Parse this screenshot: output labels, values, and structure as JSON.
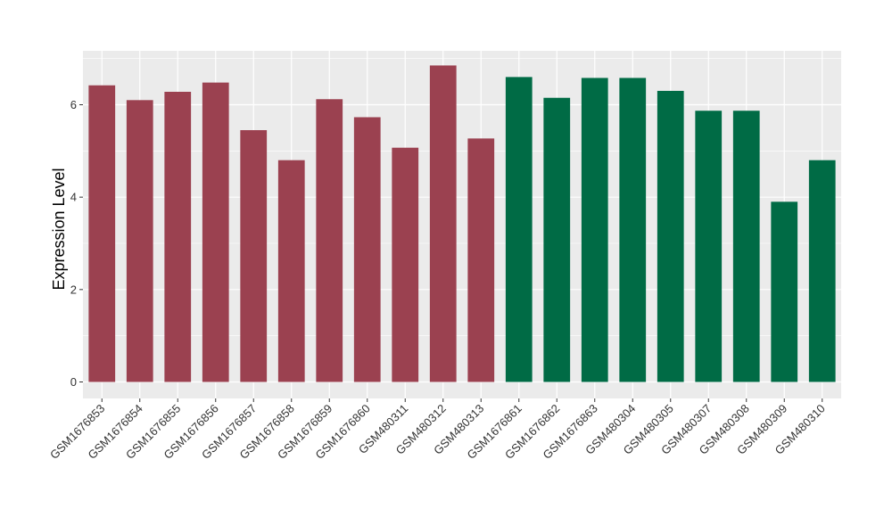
{
  "chart_data": {
    "type": "bar",
    "title": "",
    "xlabel": "",
    "ylabel": "Expression Level",
    "ylim": [
      0,
      7.15
    ],
    "yticks": [
      0,
      2,
      4,
      6
    ],
    "grid": true,
    "legend": "none",
    "categories": [
      "GSM1676853",
      "GSM1676854",
      "GSM1676855",
      "GSM1676856",
      "GSM1676857",
      "GSM1676858",
      "GSM1676859",
      "GSM1676860",
      "GSM480311",
      "GSM480312",
      "GSM480313",
      "GSM1676861",
      "GSM1676862",
      "GSM1676863",
      "GSM480304",
      "GSM480305",
      "GSM480307",
      "GSM480308",
      "GSM480309",
      "GSM480310"
    ],
    "values": [
      6.42,
      6.1,
      6.28,
      6.48,
      5.45,
      4.8,
      6.12,
      5.73,
      5.07,
      6.85,
      5.27,
      6.6,
      6.15,
      6.58,
      6.58,
      6.3,
      5.87,
      5.87,
      3.9,
      4.8
    ],
    "groups": [
      {
        "color": "#9B4150",
        "indices": [
          0,
          1,
          2,
          3,
          4,
          5,
          6,
          7,
          8,
          9,
          10
        ]
      },
      {
        "color": "#006B45",
        "indices": [
          11,
          12,
          13,
          14,
          15,
          16,
          17,
          18,
          19
        ]
      }
    ],
    "panel_background": "#EBEBEB",
    "gridline_color": "#FFFFFF"
  }
}
